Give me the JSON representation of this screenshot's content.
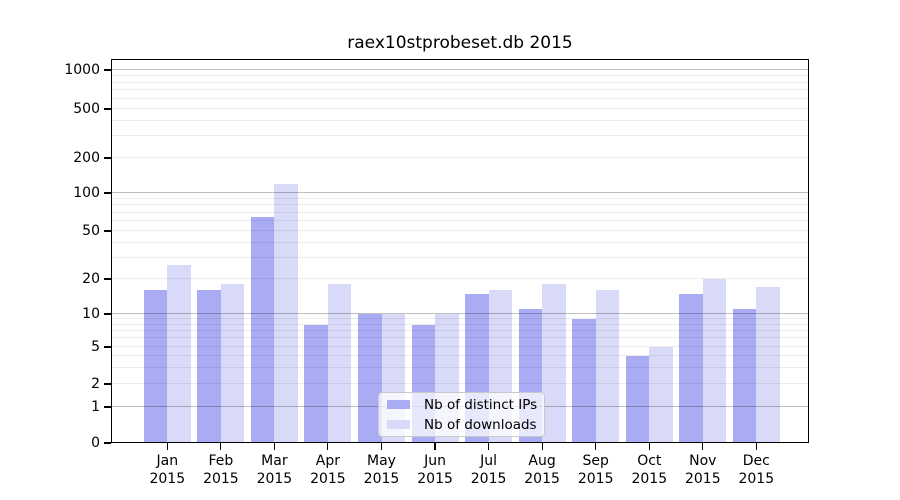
{
  "chart_data": {
    "type": "bar",
    "title": "raex10stprobeset.db 2015",
    "categories": [
      "Jan 2015",
      "Feb 2015",
      "Mar 2015",
      "Apr 2015",
      "May 2015",
      "Jun 2015",
      "Jul 2015",
      "Aug 2015",
      "Sep 2015",
      "Oct 2015",
      "Nov 2015",
      "Dec 2015"
    ],
    "series": [
      {
        "name": "Nb of distinct IPs",
        "color": "#a9abf3",
        "values": [
          16,
          16,
          65,
          8,
          10,
          8,
          15,
          11,
          9,
          4,
          15,
          11
        ]
      },
      {
        "name": "Nb of downloads",
        "color": "#d9daf8",
        "values": [
          26,
          18,
          120,
          18,
          10,
          10,
          16,
          18,
          16,
          5,
          20,
          17
        ]
      }
    ],
    "xlabel": "",
    "ylabel": "",
    "yscale": "symlog",
    "y_ticks": [
      0,
      1,
      2,
      5,
      10,
      20,
      50,
      100,
      200,
      500,
      1000
    ],
    "ylim": [
      0,
      1200
    ],
    "grid": "horizontal; dark lines at decades (1,10,100,1000), faint log minor lines, drawn over bars",
    "legend_position": "lower center"
  },
  "colors": {
    "background": "#ffffff",
    "axis": "#000000",
    "major_grid": "rgba(0,0,0,0.25)",
    "minor_grid": "rgba(0,0,0,0.07)",
    "legend_bg": "rgba(255,255,255,0.72)",
    "legend_border": "#c9c9c9"
  }
}
